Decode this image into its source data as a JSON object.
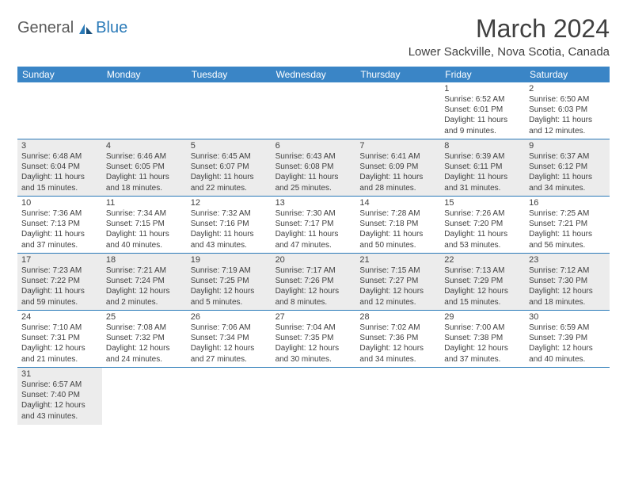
{
  "brand": {
    "part1": "General",
    "part2": "Blue"
  },
  "title": "March 2024",
  "location": "Lower Sackville, Nova Scotia, Canada",
  "colors": {
    "header_bg": "#3a85c6",
    "border": "#2a7ab8",
    "shaded_bg": "#ececec",
    "text": "#404040",
    "white": "#ffffff"
  },
  "day_names": [
    "Sunday",
    "Monday",
    "Tuesday",
    "Wednesday",
    "Thursday",
    "Friday",
    "Saturday"
  ],
  "weeks": [
    [
      null,
      null,
      null,
      null,
      null,
      {
        "n": "1",
        "sr": "Sunrise: 6:52 AM",
        "ss": "Sunset: 6:01 PM",
        "d1": "Daylight: 11 hours",
        "d2": "and 9 minutes."
      },
      {
        "n": "2",
        "sr": "Sunrise: 6:50 AM",
        "ss": "Sunset: 6:03 PM",
        "d1": "Daylight: 11 hours",
        "d2": "and 12 minutes."
      }
    ],
    [
      {
        "n": "3",
        "sr": "Sunrise: 6:48 AM",
        "ss": "Sunset: 6:04 PM",
        "d1": "Daylight: 11 hours",
        "d2": "and 15 minutes."
      },
      {
        "n": "4",
        "sr": "Sunrise: 6:46 AM",
        "ss": "Sunset: 6:05 PM",
        "d1": "Daylight: 11 hours",
        "d2": "and 18 minutes."
      },
      {
        "n": "5",
        "sr": "Sunrise: 6:45 AM",
        "ss": "Sunset: 6:07 PM",
        "d1": "Daylight: 11 hours",
        "d2": "and 22 minutes."
      },
      {
        "n": "6",
        "sr": "Sunrise: 6:43 AM",
        "ss": "Sunset: 6:08 PM",
        "d1": "Daylight: 11 hours",
        "d2": "and 25 minutes."
      },
      {
        "n": "7",
        "sr": "Sunrise: 6:41 AM",
        "ss": "Sunset: 6:09 PM",
        "d1": "Daylight: 11 hours",
        "d2": "and 28 minutes."
      },
      {
        "n": "8",
        "sr": "Sunrise: 6:39 AM",
        "ss": "Sunset: 6:11 PM",
        "d1": "Daylight: 11 hours",
        "d2": "and 31 minutes."
      },
      {
        "n": "9",
        "sr": "Sunrise: 6:37 AM",
        "ss": "Sunset: 6:12 PM",
        "d1": "Daylight: 11 hours",
        "d2": "and 34 minutes."
      }
    ],
    [
      {
        "n": "10",
        "sr": "Sunrise: 7:36 AM",
        "ss": "Sunset: 7:13 PM",
        "d1": "Daylight: 11 hours",
        "d2": "and 37 minutes."
      },
      {
        "n": "11",
        "sr": "Sunrise: 7:34 AM",
        "ss": "Sunset: 7:15 PM",
        "d1": "Daylight: 11 hours",
        "d2": "and 40 minutes."
      },
      {
        "n": "12",
        "sr": "Sunrise: 7:32 AM",
        "ss": "Sunset: 7:16 PM",
        "d1": "Daylight: 11 hours",
        "d2": "and 43 minutes."
      },
      {
        "n": "13",
        "sr": "Sunrise: 7:30 AM",
        "ss": "Sunset: 7:17 PM",
        "d1": "Daylight: 11 hours",
        "d2": "and 47 minutes."
      },
      {
        "n": "14",
        "sr": "Sunrise: 7:28 AM",
        "ss": "Sunset: 7:18 PM",
        "d1": "Daylight: 11 hours",
        "d2": "and 50 minutes."
      },
      {
        "n": "15",
        "sr": "Sunrise: 7:26 AM",
        "ss": "Sunset: 7:20 PM",
        "d1": "Daylight: 11 hours",
        "d2": "and 53 minutes."
      },
      {
        "n": "16",
        "sr": "Sunrise: 7:25 AM",
        "ss": "Sunset: 7:21 PM",
        "d1": "Daylight: 11 hours",
        "d2": "and 56 minutes."
      }
    ],
    [
      {
        "n": "17",
        "sr": "Sunrise: 7:23 AM",
        "ss": "Sunset: 7:22 PM",
        "d1": "Daylight: 11 hours",
        "d2": "and 59 minutes."
      },
      {
        "n": "18",
        "sr": "Sunrise: 7:21 AM",
        "ss": "Sunset: 7:24 PM",
        "d1": "Daylight: 12 hours",
        "d2": "and 2 minutes."
      },
      {
        "n": "19",
        "sr": "Sunrise: 7:19 AM",
        "ss": "Sunset: 7:25 PM",
        "d1": "Daylight: 12 hours",
        "d2": "and 5 minutes."
      },
      {
        "n": "20",
        "sr": "Sunrise: 7:17 AM",
        "ss": "Sunset: 7:26 PM",
        "d1": "Daylight: 12 hours",
        "d2": "and 8 minutes."
      },
      {
        "n": "21",
        "sr": "Sunrise: 7:15 AM",
        "ss": "Sunset: 7:27 PM",
        "d1": "Daylight: 12 hours",
        "d2": "and 12 minutes."
      },
      {
        "n": "22",
        "sr": "Sunrise: 7:13 AM",
        "ss": "Sunset: 7:29 PM",
        "d1": "Daylight: 12 hours",
        "d2": "and 15 minutes."
      },
      {
        "n": "23",
        "sr": "Sunrise: 7:12 AM",
        "ss": "Sunset: 7:30 PM",
        "d1": "Daylight: 12 hours",
        "d2": "and 18 minutes."
      }
    ],
    [
      {
        "n": "24",
        "sr": "Sunrise: 7:10 AM",
        "ss": "Sunset: 7:31 PM",
        "d1": "Daylight: 12 hours",
        "d2": "and 21 minutes."
      },
      {
        "n": "25",
        "sr": "Sunrise: 7:08 AM",
        "ss": "Sunset: 7:32 PM",
        "d1": "Daylight: 12 hours",
        "d2": "and 24 minutes."
      },
      {
        "n": "26",
        "sr": "Sunrise: 7:06 AM",
        "ss": "Sunset: 7:34 PM",
        "d1": "Daylight: 12 hours",
        "d2": "and 27 minutes."
      },
      {
        "n": "27",
        "sr": "Sunrise: 7:04 AM",
        "ss": "Sunset: 7:35 PM",
        "d1": "Daylight: 12 hours",
        "d2": "and 30 minutes."
      },
      {
        "n": "28",
        "sr": "Sunrise: 7:02 AM",
        "ss": "Sunset: 7:36 PM",
        "d1": "Daylight: 12 hours",
        "d2": "and 34 minutes."
      },
      {
        "n": "29",
        "sr": "Sunrise: 7:00 AM",
        "ss": "Sunset: 7:38 PM",
        "d1": "Daylight: 12 hours",
        "d2": "and 37 minutes."
      },
      {
        "n": "30",
        "sr": "Sunrise: 6:59 AM",
        "ss": "Sunset: 7:39 PM",
        "d1": "Daylight: 12 hours",
        "d2": "and 40 minutes."
      }
    ],
    [
      {
        "n": "31",
        "sr": "Sunrise: 6:57 AM",
        "ss": "Sunset: 7:40 PM",
        "d1": "Daylight: 12 hours",
        "d2": "and 43 minutes."
      },
      null,
      null,
      null,
      null,
      null,
      null
    ]
  ]
}
